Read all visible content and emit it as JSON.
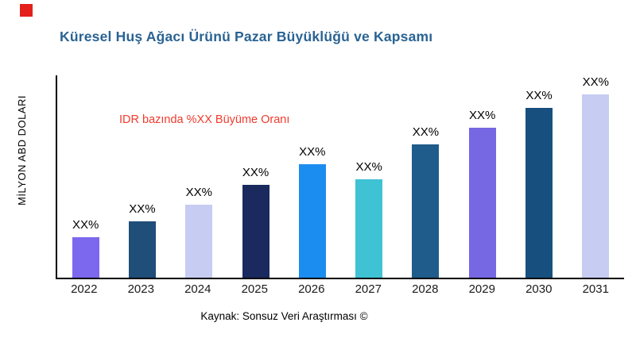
{
  "page": {
    "source": "Kaynak: Sonsuz Veri Araştırması ©"
  },
  "colors": {
    "brand_square": "#E3201B",
    "title": "#2A6393",
    "annotation": "#F03B2E",
    "axis": "#000000"
  },
  "chart_data": {
    "type": "bar",
    "title": "Küresel Huş Ağacı Ürünü Pazar Büyüklüğü ve Kapsamı",
    "ylabel": "MİLYON ABD DOLARI",
    "xlabel": "",
    "annotation": "IDR bazında %XX Büyüme Oranı",
    "categories": [
      "2022",
      "2023",
      "2024",
      "2025",
      "2026",
      "2027",
      "2028",
      "2029",
      "2030",
      "2031"
    ],
    "values": [
      50,
      70,
      90,
      115,
      140,
      122,
      165,
      185,
      210,
      230
    ],
    "bar_label": "XX%",
    "bar_colors": [
      "#7B68EE",
      "#1F4E79",
      "#C7CCF2",
      "#1B2A5E",
      "#1C8DF0",
      "#3FC2D4",
      "#1F5C8B",
      "#7667E3",
      "#17507E",
      "#C7CCF2"
    ],
    "ylim": [
      0,
      250
    ],
    "grid": false,
    "legend": false,
    "source": "Kaynak: Sonsuz Veri Araştırması ©"
  }
}
